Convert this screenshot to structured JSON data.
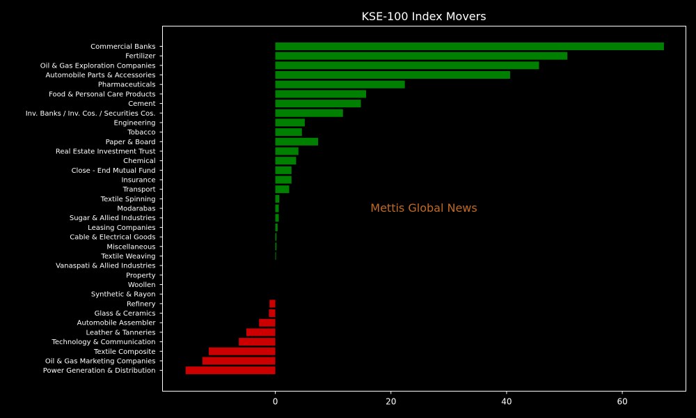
{
  "chart_data": {
    "type": "bar",
    "orientation": "horizontal",
    "title": "KSE-100 Index Movers",
    "watermark": "Mettis Global News",
    "xlim": [
      -19.5,
      71
    ],
    "xticks": [
      0,
      20,
      40,
      60
    ],
    "positive_color": "#008000",
    "negative_color": "#cc0000",
    "categories": [
      "Commercial Banks",
      "Fertilizer",
      "Oil & Gas Exploration Companies",
      "Automobile Parts & Accessories",
      "Pharmaceuticals",
      "Food & Personal Care Products",
      "Cement",
      "Inv. Banks / Inv. Cos. / Securities Cos.",
      "Engineering",
      "Tobacco",
      "Paper & Board",
      "Real Estate Investment Trust",
      "Chemical",
      "Close - End Mutual Fund",
      "Insurance",
      "Transport",
      "Textile Spinning",
      "Modarabas",
      "Sugar & Allied Industries",
      "Leasing Companies",
      "Cable & Electrical Goods",
      "Miscellaneous",
      "Textile Weaving",
      "Vanaspati & Allied Industries",
      "Property",
      "Woollen",
      "Synthetic & Rayon",
      "Refinery",
      "Glass & Ceramics",
      "Automobile Assembler",
      "Leather & Tanneries",
      "Technology & Communication",
      "Textile Composite",
      "Oil & Gas Marketing Companies",
      "Power Generation & Distribution"
    ],
    "values": [
      67.2,
      50.5,
      45.6,
      40.6,
      22.4,
      15.7,
      14.8,
      11.7,
      5.1,
      4.6,
      7.4,
      4.0,
      3.6,
      2.8,
      2.8,
      2.4,
      0.7,
      0.6,
      0.6,
      0.4,
      0.2,
      0.2,
      0.1,
      0,
      0,
      0,
      0,
      -1.0,
      -1.1,
      -2.8,
      -5.0,
      -6.3,
      -11.5,
      -12.6,
      -15.5
    ]
  }
}
